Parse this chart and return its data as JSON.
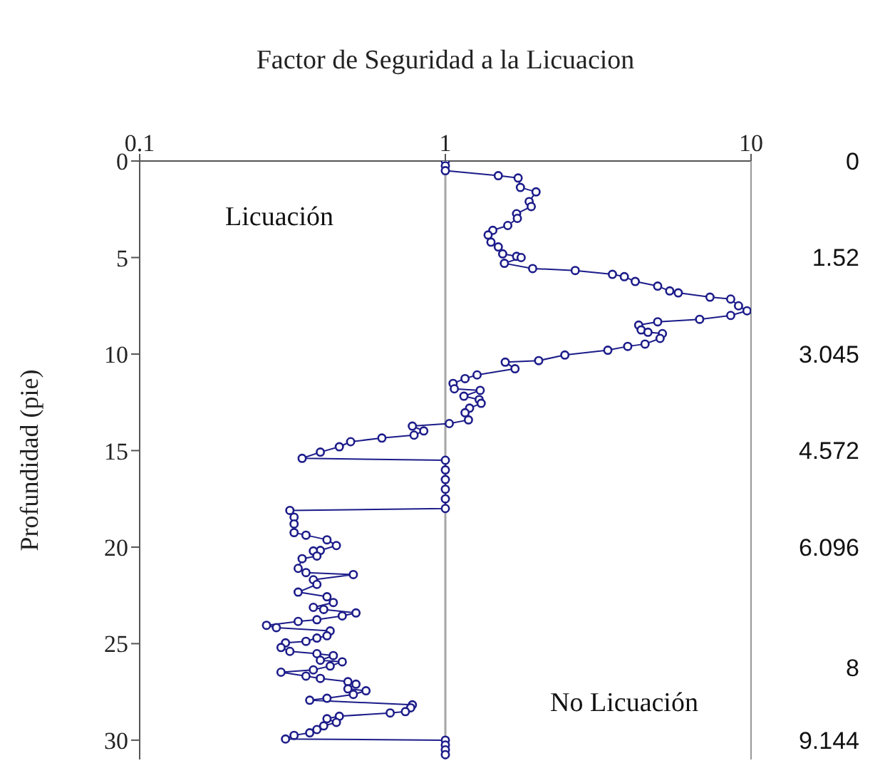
{
  "chart_data": {
    "type": "line",
    "xlabel": "Factor de Seguridad a la Licuacion",
    "ylabel": "Profundidad (pie)",
    "log": "x",
    "xlim": [
      0.1,
      10
    ],
    "xticks": [
      0.1,
      1,
      10
    ],
    "ylim": [
      31,
      0
    ],
    "yticks": [
      0,
      5,
      10,
      15,
      20,
      25,
      30
    ],
    "y2lim": [
      9.45,
      0
    ],
    "y2ticks": [
      0,
      1.52,
      3.045,
      4.572,
      6.096,
      8,
      9.144
    ],
    "marker": "circle",
    "line_style": "solid",
    "ref_lines": [
      {
        "axis": "x",
        "value": 1,
        "color": "#a6a6a6"
      }
    ],
    "annotations": [
      "Licuación",
      "No Licuación"
    ],
    "series": [
      {
        "color": "#1c1c8a",
        "x": [
          1,
          1,
          1,
          1.49,
          1.73,
          1.76,
          1.98,
          1.88,
          1.91,
          1.71,
          1.72,
          1.6,
          1.43,
          1.38,
          1.41,
          1.49,
          1.54,
          1.71,
          1.77,
          1.56,
          1.93,
          2.66,
          3.52,
          3.85,
          4.18,
          4.95,
          5.42,
          5.78,
          7.34,
          8.58,
          9.1,
          9.7,
          8.58,
          6.79,
          4.95,
          4.29,
          4.37,
          4.6,
          5.13,
          5.04,
          4.5,
          3.95,
          3.4,
          2.46,
          2.02,
          1.57,
          1.69,
          1.27,
          1.16,
          1.06,
          1.07,
          1.3,
          1.15,
          1.29,
          1.31,
          1.2,
          1.16,
          1.19,
          1.03,
          0.78,
          0.85,
          0.79,
          0.62,
          0.49,
          0.45,
          0.39,
          0.34,
          1,
          1,
          1,
          1,
          1,
          1,
          0.31,
          0.32,
          0.32,
          0.32,
          0.35,
          0.41,
          0.44,
          0.39,
          0.37,
          0.38,
          0.34,
          0.33,
          0.35,
          0.5,
          0.37,
          0.38,
          0.33,
          0.41,
          0.43,
          0.37,
          0.4,
          0.51,
          0.46,
          0.38,
          0.33,
          0.26,
          0.28,
          0.42,
          0.41,
          0.38,
          0.35,
          0.3,
          0.29,
          0.31,
          0.38,
          0.43,
          0.39,
          0.46,
          0.42,
          0.37,
          0.29,
          0.35,
          0.39,
          0.48,
          0.51,
          0.48,
          0.55,
          0.5,
          0.41,
          0.36,
          0.78,
          0.77,
          0.74,
          0.66,
          0.45,
          0.41,
          0.44,
          0.4,
          0.38,
          0.36,
          0.32,
          0.3,
          1,
          1,
          1,
          1
        ],
        "values": [
          0,
          0.25,
          0.5,
          0.76,
          0.88,
          1.37,
          1.6,
          2.1,
          2.36,
          2.73,
          2.97,
          3.34,
          3.59,
          3.83,
          4.2,
          4.45,
          4.81,
          4.94,
          5.0,
          5.3,
          5.57,
          5.67,
          5.87,
          5.99,
          6.24,
          6.48,
          6.73,
          6.83,
          7.05,
          7.15,
          7.5,
          7.76,
          8.0,
          8.2,
          8.33,
          8.5,
          8.75,
          8.87,
          8.94,
          9.19,
          9.48,
          9.6,
          9.8,
          10.05,
          10.34,
          10.42,
          10.76,
          11.08,
          11.27,
          11.52,
          11.8,
          11.88,
          12.18,
          12.36,
          12.55,
          12.8,
          13.04,
          13.41,
          13.6,
          13.73,
          13.98,
          14.2,
          14.35,
          14.54,
          14.8,
          15.08,
          15.4,
          15.5,
          16,
          16.5,
          17,
          17.5,
          18,
          18.1,
          18.45,
          18.8,
          19.25,
          19.38,
          19.62,
          19.92,
          20.17,
          20.2,
          20.46,
          20.6,
          21.1,
          21.32,
          21.42,
          21.69,
          21.93,
          22.33,
          22.57,
          22.87,
          23.12,
          23.23,
          23.41,
          23.56,
          23.76,
          23.85,
          24.05,
          24.17,
          24.34,
          24.59,
          24.71,
          24.88,
          24.96,
          25.2,
          25.4,
          25.52,
          25.62,
          25.86,
          25.94,
          26.16,
          26.36,
          26.48,
          26.68,
          26.8,
          26.97,
          27.1,
          27.34,
          27.44,
          27.63,
          27.83,
          27.93,
          28.17,
          28.32,
          28.52,
          28.59,
          28.76,
          28.89,
          29.08,
          29.26,
          29.45,
          29.62,
          29.75,
          29.94,
          30,
          30.25,
          30.5,
          30.75
        ]
      }
    ]
  }
}
